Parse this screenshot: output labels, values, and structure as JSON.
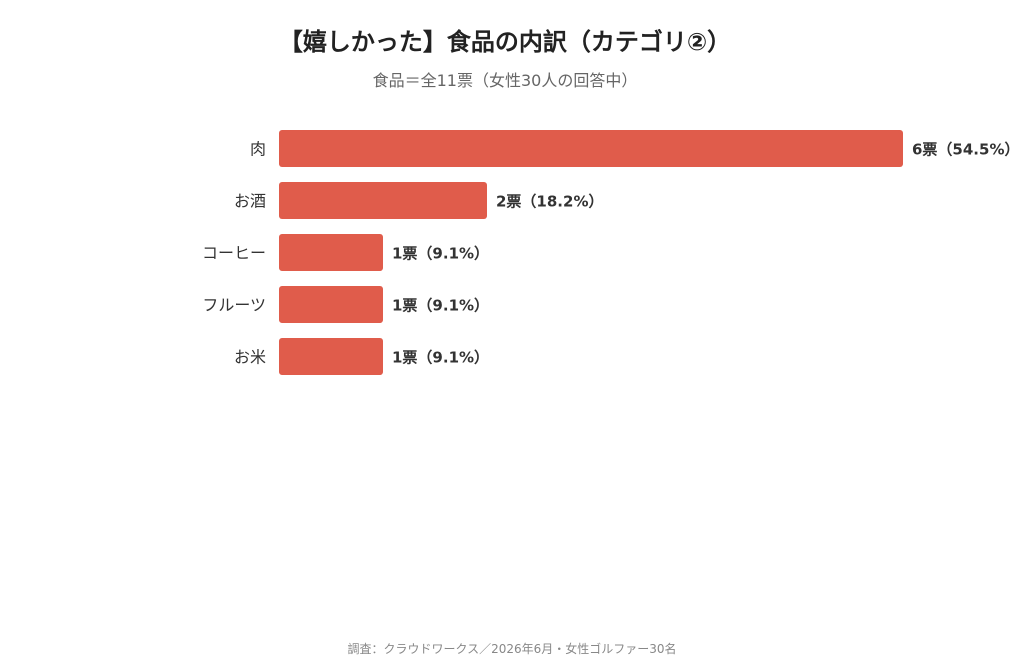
{
  "chart_data": {
    "type": "bar",
    "orientation": "horizontal",
    "title": "【嬉しかった】食品の内訳（カテゴリ②）",
    "subtitle": "食品＝全11票（女性30人の回答中）",
    "categories": [
      "肉",
      "お酒",
      "コーヒー",
      "フルーツ",
      "お米"
    ],
    "values": [
      6,
      2,
      1,
      1,
      1
    ],
    "percentages": [
      54.5,
      18.2,
      9.1,
      9.1,
      9.1
    ],
    "data_labels": [
      "6票（54.5%）",
      "2票（18.2%）",
      "1票（9.1%）",
      "1票（9.1%）",
      "1票（9.1%）"
    ],
    "xlim": [
      0,
      6
    ],
    "grid": false,
    "legend": "none",
    "bar_color": "#e05c4b"
  },
  "footer": {
    "source": "調査：クラウドワークス／2026年6月・女性ゴルファー30名"
  }
}
